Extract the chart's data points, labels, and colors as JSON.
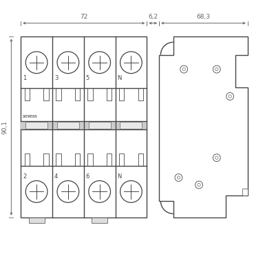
{
  "bg_color": "#ffffff",
  "line_color": "#444444",
  "dim_color": "#666666",
  "lw_main": 1.0,
  "lw_thin": 0.6,
  "pole_labels_top": [
    "1",
    "3",
    "5",
    "N"
  ],
  "pole_labels_bot": [
    "2",
    "4",
    "6",
    "N"
  ],
  "siemens_text": "SIEMENS",
  "dim_72_label": "72",
  "dim_62_label": "6,2",
  "dim_683_label": "68,3",
  "dim_901_label": "90,1"
}
